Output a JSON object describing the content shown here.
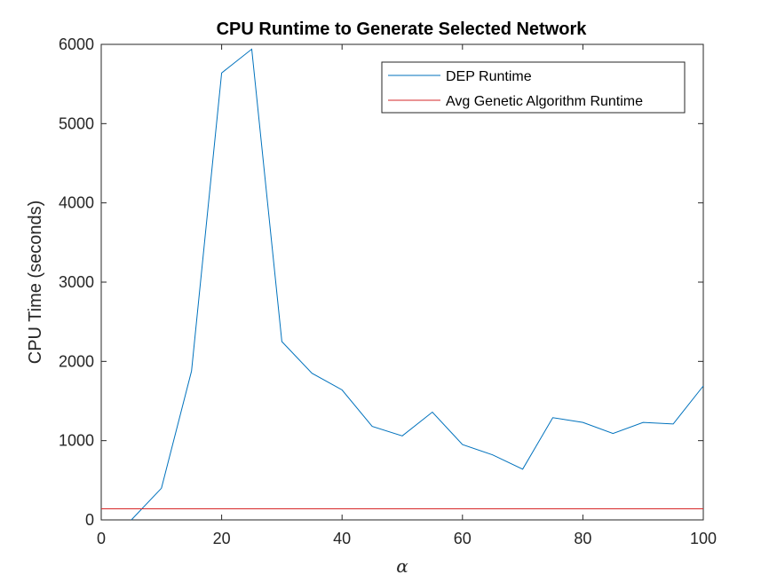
{
  "chart_data": {
    "type": "line",
    "title": "CPU Runtime to Generate Selected Network",
    "xlabel": "α",
    "ylabel": "CPU Time (seconds)",
    "xlim": [
      0,
      100
    ],
    "ylim": [
      0,
      6000
    ],
    "xticks": [
      0,
      20,
      40,
      60,
      80,
      100
    ],
    "yticks": [
      0,
      1000,
      2000,
      3000,
      4000,
      5000,
      6000
    ],
    "grid": false,
    "legend_position": "top-right",
    "series": [
      {
        "name": "DEP Runtime",
        "color": "#0072bd",
        "x": [
          5,
          10,
          15,
          20,
          25,
          30,
          35,
          40,
          45,
          50,
          55,
          60,
          65,
          70,
          75,
          80,
          85,
          90,
          95,
          100
        ],
        "y": [
          0,
          400,
          1880,
          5640,
          5940,
          2250,
          1850,
          1640,
          1180,
          1060,
          1360,
          950,
          820,
          640,
          1290,
          1230,
          1090,
          1230,
          1210,
          1690
        ]
      },
      {
        "name": "Avg Genetic Algorithm Runtime",
        "color": "#d62728",
        "x": [
          0,
          100
        ],
        "y": [
          140,
          140
        ]
      }
    ]
  }
}
